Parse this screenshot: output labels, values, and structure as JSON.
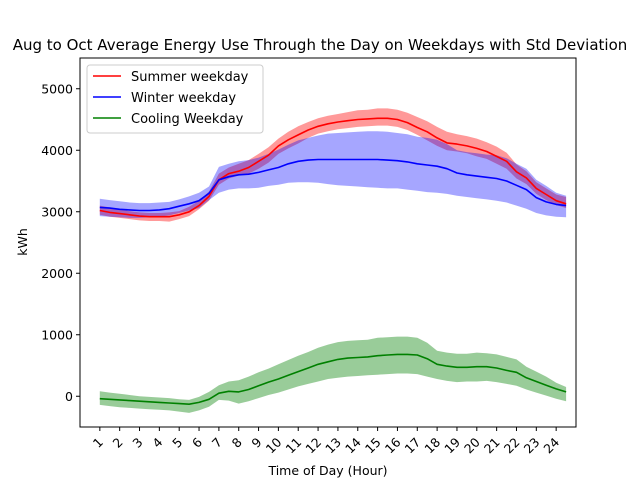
{
  "chart_data": {
    "type": "line",
    "title": "Aug to Oct Average Energy Use Through the Day on Weekdays with Std Deviation",
    "xlabel": "Time of Day (Hour)",
    "ylabel": "kWh",
    "xlim": [
      0.0,
      25.0
    ],
    "ylim": [
      -500,
      5500
    ],
    "xticks": [
      "1",
      "2",
      "3",
      "4",
      "5",
      "6",
      "7",
      "8",
      "9",
      "10",
      "11",
      "12",
      "13",
      "14",
      "15",
      "16",
      "17",
      "18",
      "19",
      "20",
      "21",
      "22",
      "23",
      "24"
    ],
    "yticks": [
      0,
      1000,
      2000,
      3000,
      4000,
      5000
    ],
    "grid": false,
    "legend_position": "top-left",
    "x": [
      1,
      1.5,
      2,
      2.5,
      3,
      3.5,
      4,
      4.5,
      5,
      5.5,
      6,
      6.5,
      7,
      7.5,
      8,
      8.5,
      9,
      9.5,
      10,
      10.5,
      11,
      11.5,
      12,
      12.5,
      13,
      13.5,
      14,
      14.5,
      15,
      15.5,
      16,
      16.5,
      17,
      17.5,
      18,
      18.5,
      19,
      19.5,
      20,
      20.5,
      21,
      21.5,
      22,
      22.5,
      23,
      23.5,
      24,
      24.5
    ],
    "series": [
      {
        "name": "Summer weekday",
        "color": "#ff0000",
        "fill": "rgba(255,0,0,0.4)",
        "mean": [
          3020,
          2990,
          2970,
          2950,
          2930,
          2920,
          2920,
          2920,
          2950,
          3000,
          3100,
          3250,
          3520,
          3620,
          3660,
          3720,
          3820,
          3920,
          4070,
          4170,
          4250,
          4330,
          4390,
          4430,
          4460,
          4480,
          4500,
          4510,
          4520,
          4520,
          4500,
          4450,
          4370,
          4300,
          4200,
          4120,
          4100,
          4070,
          4030,
          3980,
          3900,
          3820,
          3650,
          3550,
          3380,
          3280,
          3180,
          3130
        ],
        "upper": [
          3100,
          3070,
          3040,
          3010,
          2990,
          2980,
          2980,
          2990,
          3010,
          3080,
          3180,
          3330,
          3620,
          3720,
          3780,
          3840,
          3940,
          4050,
          4190,
          4300,
          4390,
          4460,
          4520,
          4560,
          4590,
          4620,
          4650,
          4660,
          4680,
          4680,
          4660,
          4610,
          4540,
          4470,
          4380,
          4300,
          4260,
          4230,
          4190,
          4130,
          4060,
          3960,
          3770,
          3660,
          3480,
          3380,
          3280,
          3240
        ],
        "lower": [
          2950,
          2920,
          2900,
          2880,
          2860,
          2850,
          2850,
          2840,
          2880,
          2930,
          3040,
          3180,
          3440,
          3540,
          3590,
          3620,
          3700,
          3800,
          3940,
          4030,
          4110,
          4200,
          4270,
          4310,
          4340,
          4360,
          4380,
          4390,
          4400,
          4400,
          4380,
          4330,
          4250,
          4160,
          4070,
          4000,
          3980,
          3950,
          3900,
          3860,
          3780,
          3700,
          3540,
          3450,
          3290,
          3190,
          3110,
          3060
        ]
      },
      {
        "name": "Winter weekday",
        "color": "#0000ff",
        "fill": "rgba(0,0,255,0.35)",
        "mean": [
          3070,
          3060,
          3040,
          3030,
          3020,
          3020,
          3030,
          3050,
          3090,
          3130,
          3180,
          3300,
          3520,
          3570,
          3600,
          3610,
          3640,
          3680,
          3720,
          3780,
          3820,
          3840,
          3850,
          3850,
          3850,
          3850,
          3850,
          3850,
          3850,
          3840,
          3830,
          3810,
          3780,
          3760,
          3740,
          3700,
          3630,
          3600,
          3580,
          3560,
          3540,
          3500,
          3430,
          3360,
          3230,
          3160,
          3120,
          3100
        ],
        "upper": [
          3210,
          3190,
          3170,
          3150,
          3140,
          3140,
          3150,
          3160,
          3200,
          3250,
          3310,
          3410,
          3730,
          3780,
          3820,
          3840,
          3880,
          3940,
          4010,
          4090,
          4160,
          4200,
          4240,
          4270,
          4280,
          4290,
          4300,
          4310,
          4310,
          4300,
          4280,
          4260,
          4220,
          4200,
          4170,
          4100,
          4000,
          3970,
          3950,
          3930,
          3920,
          3870,
          3780,
          3700,
          3520,
          3420,
          3310,
          3260
        ],
        "lower": [
          2930,
          2920,
          2910,
          2900,
          2900,
          2910,
          2920,
          2940,
          2980,
          3020,
          3060,
          3190,
          3310,
          3360,
          3380,
          3380,
          3390,
          3420,
          3440,
          3470,
          3480,
          3480,
          3470,
          3450,
          3430,
          3420,
          3410,
          3400,
          3390,
          3380,
          3380,
          3360,
          3340,
          3320,
          3310,
          3290,
          3260,
          3240,
          3220,
          3200,
          3180,
          3150,
          3100,
          3050,
          2980,
          2940,
          2920,
          2910
        ]
      },
      {
        "name": "Cooling Weekday",
        "color": "#008000",
        "fill": "rgba(0,128,0,0.4)",
        "mean": [
          -40,
          -50,
          -60,
          -70,
          -80,
          -90,
          -100,
          -110,
          -120,
          -130,
          -100,
          -50,
          50,
          80,
          70,
          110,
          170,
          230,
          280,
          340,
          400,
          460,
          520,
          560,
          600,
          620,
          630,
          640,
          660,
          670,
          680,
          680,
          670,
          610,
          520,
          490,
          470,
          470,
          480,
          480,
          460,
          420,
          390,
          300,
          240,
          180,
          120,
          70
        ],
        "upper": [
          80,
          60,
          40,
          20,
          0,
          -10,
          -20,
          -30,
          -50,
          -60,
          -10,
          70,
          180,
          240,
          260,
          320,
          390,
          450,
          520,
          590,
          660,
          720,
          790,
          840,
          880,
          900,
          910,
          920,
          950,
          960,
          970,
          970,
          950,
          870,
          740,
          710,
          690,
          690,
          710,
          700,
          680,
          640,
          600,
          480,
          400,
          320,
          220,
          150
        ],
        "lower": [
          -140,
          -160,
          -180,
          -190,
          -200,
          -210,
          -220,
          -230,
          -250,
          -270,
          -230,
          -170,
          -60,
          -70,
          -120,
          -80,
          -30,
          20,
          60,
          110,
          160,
          200,
          240,
          280,
          300,
          320,
          330,
          340,
          350,
          360,
          370,
          370,
          360,
          320,
          280,
          250,
          230,
          240,
          240,
          250,
          230,
          200,
          170,
          110,
          60,
          10,
          -40,
          -80
        ]
      }
    ]
  }
}
